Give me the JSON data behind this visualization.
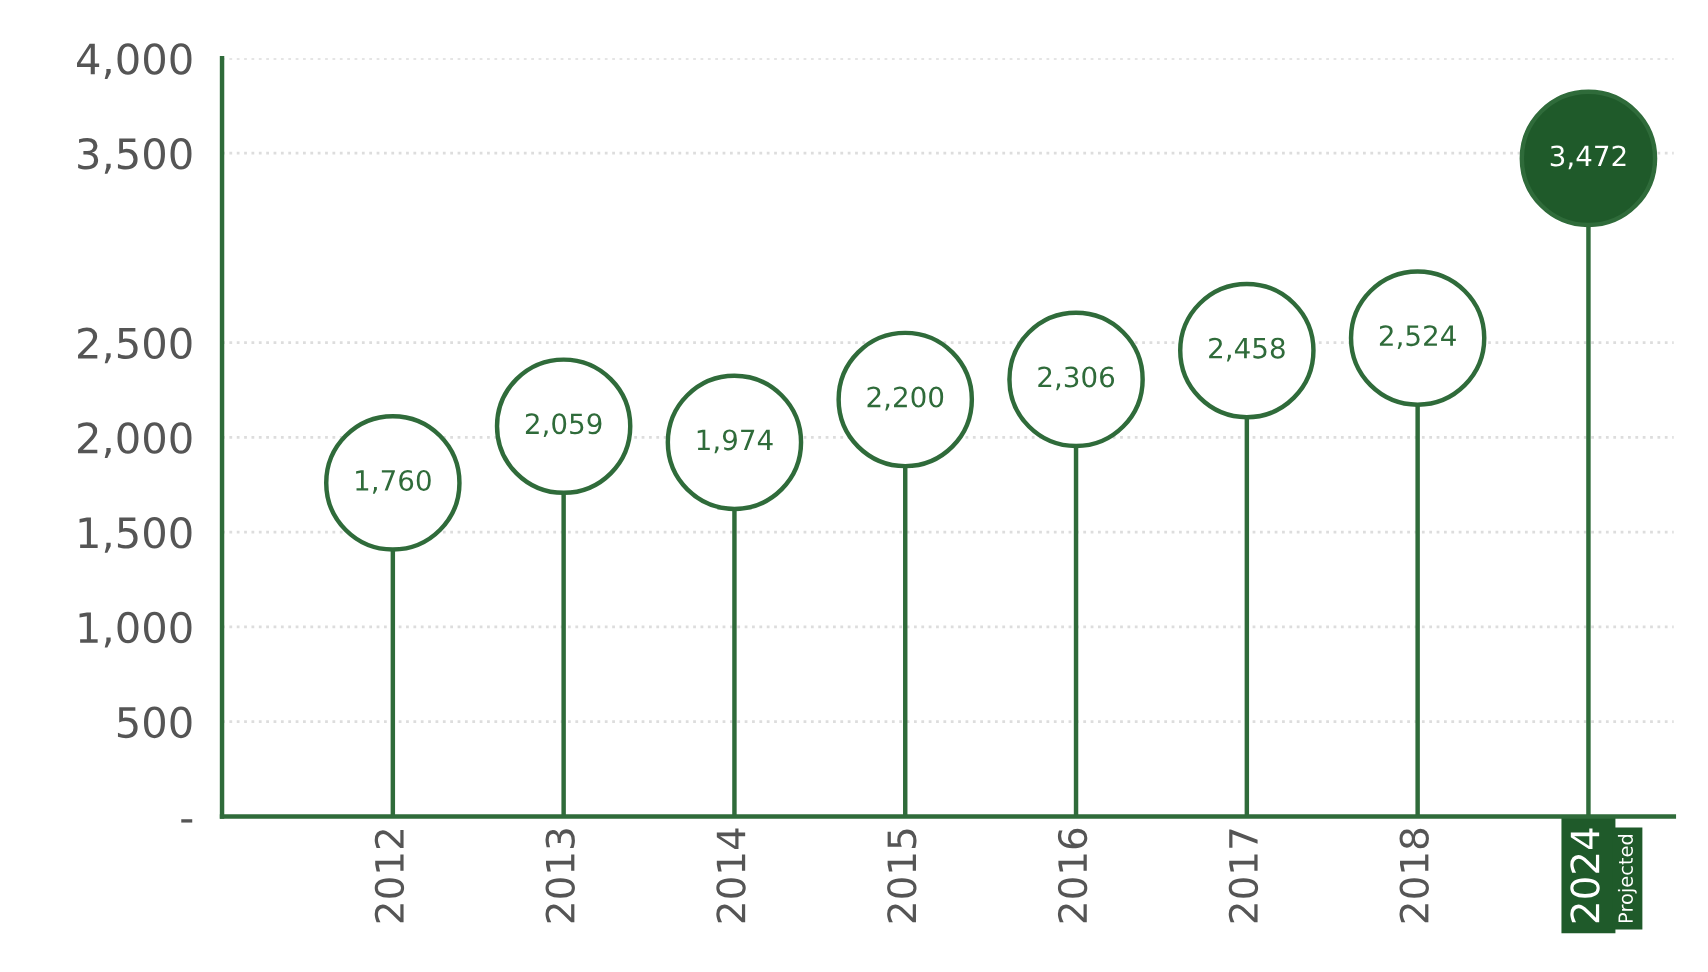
{
  "chart_data": {
    "type": "lollipop",
    "categories": [
      "2012",
      "2013",
      "2014",
      "2015",
      "2016",
      "2017",
      "2018",
      "2024"
    ],
    "values": [
      1760,
      2059,
      1974,
      2200,
      2306,
      2458,
      2524,
      3472
    ],
    "color": "#2f6b3a",
    "colors": [
      "#ffffff",
      "#ffffff",
      "#ffffff",
      "#ffffff",
      "#ffffff",
      "#ffffff",
      "#ffffff",
      "#1f5a2a"
    ],
    "value_labels": [
      "1,760",
      "2,059",
      "1,974",
      "2,200",
      "2,306",
      "2,458",
      "2,524",
      "3,472"
    ],
    "ylim": [
      0,
      4000
    ],
    "yticks": [
      {
        "value": 0,
        "label": "-"
      },
      {
        "value": 500,
        "label": "500"
      },
      {
        "value": 1000,
        "label": "1,000"
      },
      {
        "value": 1500,
        "label": "1,500"
      },
      {
        "value": 2000,
        "label": "2,000"
      },
      {
        "value": 2500,
        "label": "2,500"
      },
      {
        "value": 3500,
        "label": "3,500"
      },
      {
        "value": 4000,
        "label": "4,000"
      }
    ],
    "grid": "y",
    "annotations": [
      "Projected"
    ]
  }
}
